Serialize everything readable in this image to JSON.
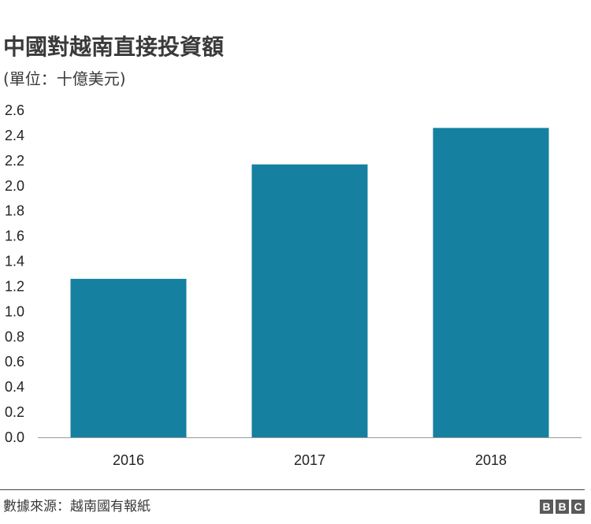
{
  "header": {
    "title": "中國對越南直接投資額",
    "subtitle": "(單位：十億美元)"
  },
  "footer": {
    "source": "數據來源：越南國有報紙",
    "logo_letters": [
      "B",
      "B",
      "C"
    ]
  },
  "colors": {
    "bar": "#1580a0",
    "axis": "#999999"
  },
  "chart_data": {
    "type": "bar",
    "categories": [
      "2016",
      "2017",
      "2018"
    ],
    "values": [
      1.26,
      2.17,
      2.46
    ],
    "ylim": [
      0,
      2.6
    ],
    "yticks": [
      "0.0",
      "0.2",
      "0.4",
      "0.6",
      "0.8",
      "1.0",
      "1.2",
      "1.4",
      "1.6",
      "1.8",
      "2.0",
      "2.2",
      "2.4",
      "2.6"
    ],
    "grid": false,
    "xlabel": "",
    "ylabel": ""
  }
}
